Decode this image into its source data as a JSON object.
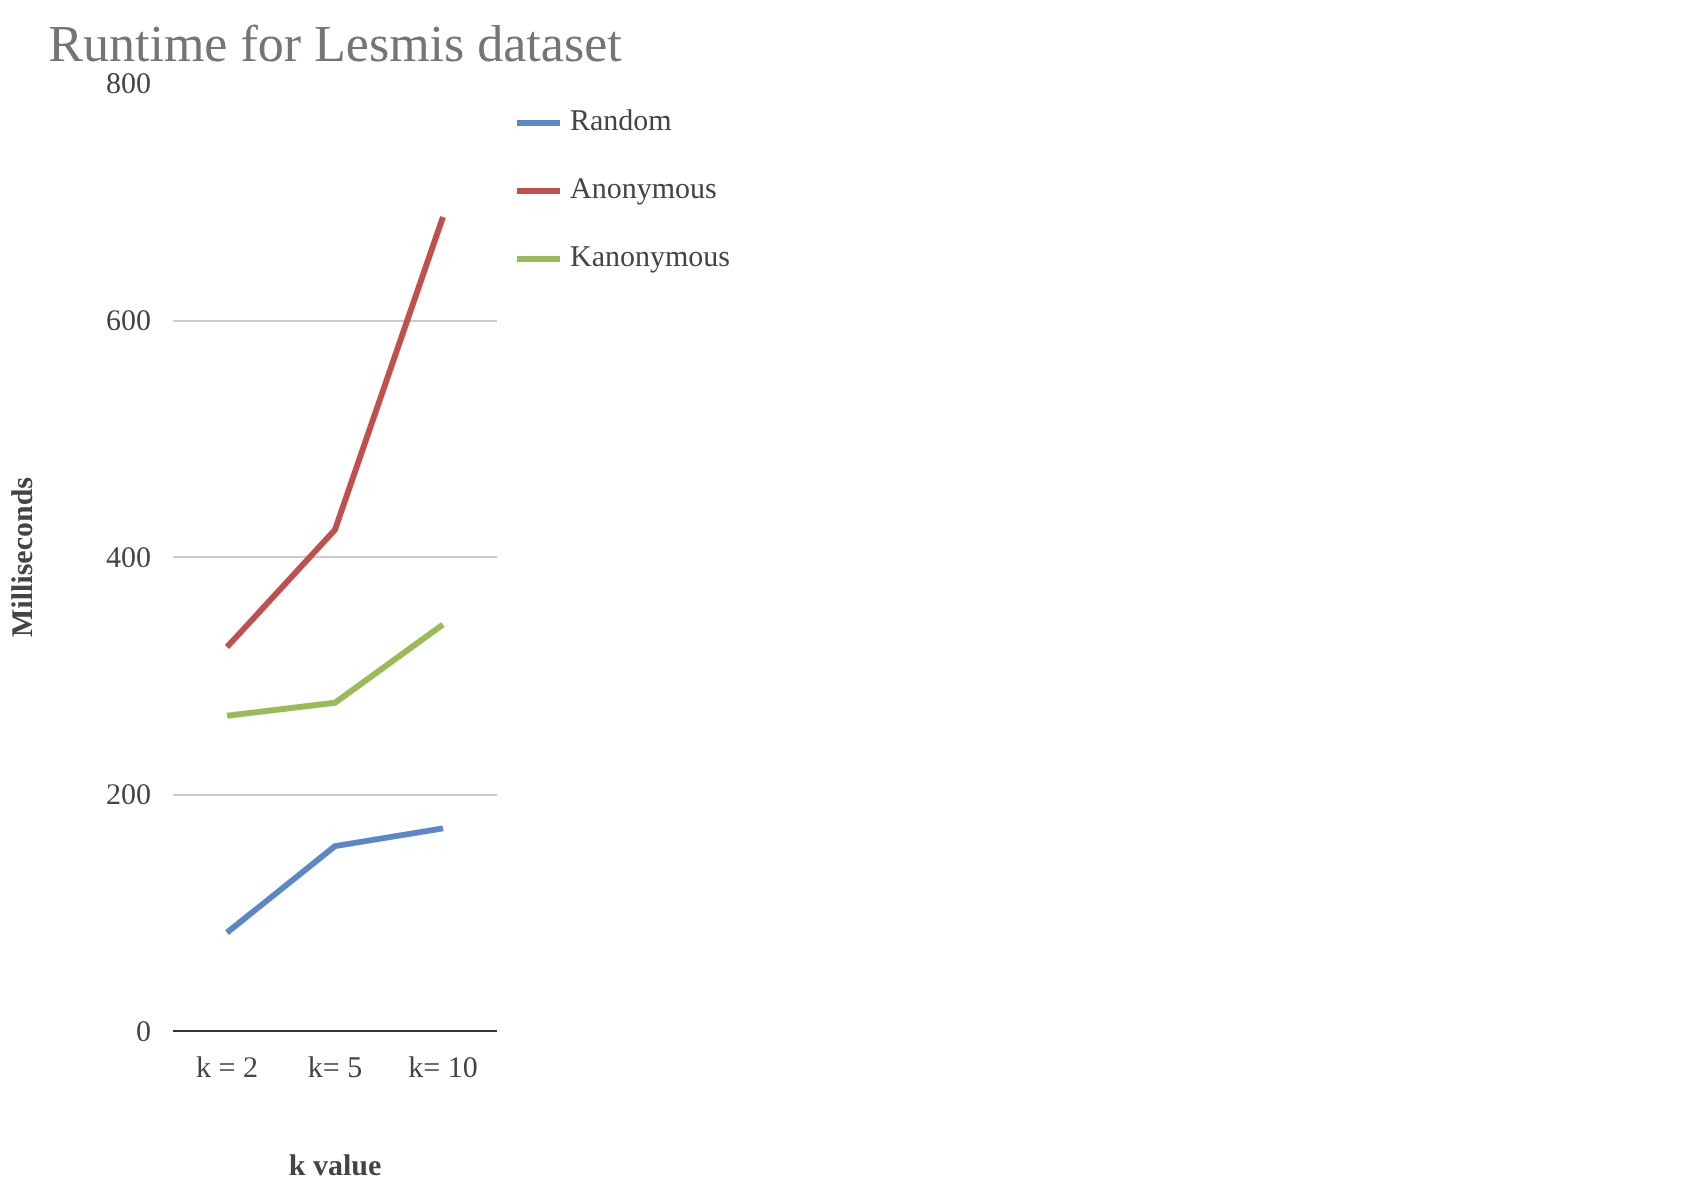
{
  "chart_data": {
    "type": "line",
    "title": "Runtime for Lesmis dataset",
    "xlabel": "k value",
    "ylabel": "Milliseconds",
    "categories": [
      "k = 2",
      "k= 5",
      "k= 10"
    ],
    "series": [
      {
        "name": "Random",
        "color": "#5b87c9",
        "values": [
          83,
          156,
          171
        ]
      },
      {
        "name": "Anonymous",
        "color": "#c0504d",
        "values": [
          324,
          423,
          687
        ]
      },
      {
        "name": "Kanonymous",
        "color": "#9bbb59",
        "values": [
          266,
          277,
          343
        ]
      }
    ],
    "ylim": [
      0,
      800
    ],
    "yticks": [
      0,
      200,
      400,
      600,
      800
    ],
    "grid": "y",
    "legend": "right",
    "marker": "none",
    "line_style": "solid"
  }
}
